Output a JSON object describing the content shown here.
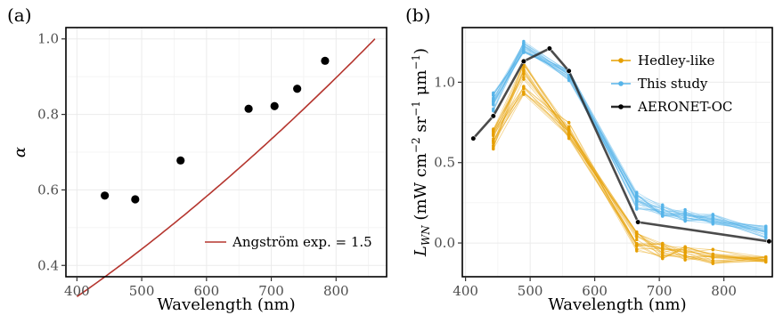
{
  "chart_data": [
    {
      "panel": "(a)",
      "type": "scatter",
      "xlabel": "Wavelength (nm)",
      "ylabel": "α",
      "xlim": [
        383,
        878
      ],
      "ylim": [
        0.37,
        1.03
      ],
      "xticks": [
        400,
        500,
        600,
        700,
        800
      ],
      "yticks": [
        0.4,
        0.6,
        0.8,
        1.0
      ],
      "ytick_labels": [
        "0.4",
        "0.6",
        "0.8",
        "1.0"
      ],
      "grid": true,
      "legend_position": "bottom-right",
      "points": {
        "x": [
          443,
          490,
          560,
          665,
          705,
          740,
          783
        ],
        "y": [
          0.585,
          0.575,
          0.678,
          0.815,
          0.822,
          0.868,
          0.942
        ],
        "color": "#000000"
      },
      "curve": {
        "name": "Angström exp. = 1.5",
        "color": "#b5362f",
        "exponent": 1.5,
        "reference_wavelength": 860,
        "x_range": [
          400,
          860
        ]
      }
    },
    {
      "panel": "(b)",
      "type": "line",
      "xlabel": "Wavelength (nm)",
      "ylabel_parts": {
        "main": "L",
        "sub": "WN",
        "units_a": " (mW cm",
        "sup_a": "−2",
        "units_b": " sr",
        "sup_b": "−1",
        "units_c": " μm",
        "sup_c": "−1",
        "units_d": ")"
      },
      "xlim": [
        395,
        875
      ],
      "ylim": [
        -0.21,
        1.34
      ],
      "xticks": [
        400,
        500,
        600,
        700,
        800
      ],
      "yticks": [
        0.0,
        0.5,
        1.0
      ],
      "ytick_labels": [
        "0.0",
        "0.5",
        "1.0"
      ],
      "grid": true,
      "legend_position": "top-right",
      "series": [
        {
          "name": "Hedley-like",
          "color": "#e69f00",
          "x": [
            443,
            490,
            560,
            665,
            705,
            740,
            783,
            865
          ],
          "mean": [
            0.65,
            1.03,
            0.7,
            0.01,
            -0.05,
            -0.07,
            -0.08,
            -0.1
          ],
          "spread": [
            0.07,
            0.11,
            0.05,
            0.06,
            0.05,
            0.05,
            0.05,
            0.02
          ],
          "n_lines": 22
        },
        {
          "name": "This study",
          "color": "#56b4e9",
          "x": [
            443,
            490,
            560,
            665,
            705,
            740,
            783,
            865
          ],
          "mean": [
            0.88,
            1.21,
            1.05,
            0.27,
            0.2,
            0.17,
            0.15,
            0.07
          ],
          "spread": [
            0.06,
            0.05,
            0.04,
            0.06,
            0.04,
            0.04,
            0.04,
            0.04
          ],
          "n_lines": 22
        },
        {
          "name": "AERONET-OC",
          "color": "#000000",
          "x": [
            412,
            443,
            490,
            530,
            560,
            667,
            870
          ],
          "y": [
            0.65,
            0.79,
            1.13,
            1.21,
            1.07,
            0.13,
            0.01
          ]
        }
      ]
    }
  ]
}
